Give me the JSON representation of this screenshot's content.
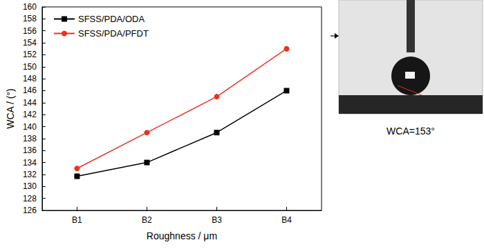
{
  "chart_data": {
    "type": "line",
    "x_label": "Roughness / μm",
    "y_label": "WCA / (°)",
    "categories": [
      "B1",
      "B2",
      "B3",
      "B4"
    ],
    "series": [
      {
        "name": "SFSS/PDA/ODA",
        "color": "#000000",
        "marker": "square",
        "values": [
          131.7,
          134,
          139,
          146
        ]
      },
      {
        "name": "SFSS/PDA/PFDT",
        "color": "#e8331f",
        "marker": "circle",
        "values": [
          133,
          139,
          145,
          153
        ]
      }
    ],
    "ylim": [
      126,
      160
    ],
    "yticks": [
      126,
      128,
      130,
      132,
      134,
      136,
      138,
      140,
      142,
      144,
      146,
      148,
      150,
      152,
      154,
      156,
      158,
      160
    ],
    "grid": false,
    "legend": "upper left",
    "annotation": "WCA=153°"
  }
}
